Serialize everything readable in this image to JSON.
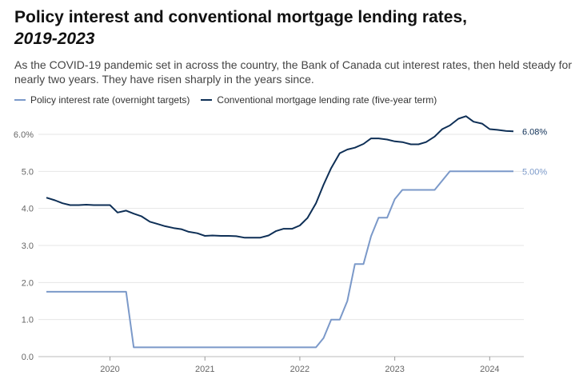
{
  "header": {
    "title_line1": "Policy interest and conventional mortgage lending rates,",
    "title_line2": "2019-2023",
    "subtitle": "As the COVID-19 pandemic set in across the country, the Bank of Canada cut interest rates, then held steady for nearly two years. They have risen sharply in the years since."
  },
  "colors": {
    "policy": "#7b99c9",
    "mortgage": "#0e2f56",
    "grid": "#e6e6e6"
  },
  "chart_data": {
    "type": "line",
    "title": "Policy interest and conventional mortgage lending rates, 2019-2023",
    "subtitle": "As the COVID-19 pandemic set in across the country, the Bank of Canada cut interest rates, then held steady for nearly two years. They have risen sharply in the years since.",
    "xlabel": "",
    "ylabel": "",
    "xlim": [
      2019.25,
      2024.3
    ],
    "ylim": [
      0,
      6.5
    ],
    "y_ticks": [
      "0.0",
      "1.0",
      "2.0",
      "3.0",
      "4.0",
      "5.0",
      "6.0%"
    ],
    "y_tick_values": [
      0,
      1,
      2,
      3,
      4,
      5,
      6
    ],
    "x_ticks": [
      "2020",
      "2021",
      "2022",
      "2023",
      "2024"
    ],
    "x_tick_values": [
      2020,
      2021,
      2022,
      2023,
      2024
    ],
    "grid": true,
    "legend_position": "top-left",
    "series": [
      {
        "name": "Policy interest rate (overnight targets)",
        "color": "#7b99c9",
        "end_label": "5.00%",
        "x": [
          2019.33,
          2020.17,
          2020.25,
          2022.17,
          2022.25,
          2022.33,
          2022.42,
          2022.5,
          2022.58,
          2022.67,
          2022.75,
          2022.83,
          2022.92,
          2023.0,
          2023.08,
          2023.42,
          2023.58,
          2024.25
        ],
        "values": [
          1.75,
          1.75,
          0.25,
          0.25,
          0.5,
          1.0,
          1.0,
          1.5,
          2.5,
          2.5,
          3.25,
          3.75,
          3.75,
          4.25,
          4.5,
          4.5,
          5.0,
          5.0
        ]
      },
      {
        "name": "Conventional mortgage lending rate (five-year term)",
        "color": "#0e2f56",
        "end_label": "6.08%",
        "x": [
          2019.33,
          2019.42,
          2019.5,
          2019.58,
          2019.67,
          2019.75,
          2019.83,
          2019.92,
          2020.0,
          2020.08,
          2020.17,
          2020.25,
          2020.33,
          2020.42,
          2020.5,
          2020.58,
          2020.67,
          2020.75,
          2020.83,
          2020.92,
          2021.0,
          2021.08,
          2021.17,
          2021.25,
          2021.33,
          2021.42,
          2021.5,
          2021.58,
          2021.67,
          2021.75,
          2021.83,
          2021.92,
          2022.0,
          2022.08,
          2022.17,
          2022.25,
          2022.33,
          2022.42,
          2022.5,
          2022.58,
          2022.67,
          2022.75,
          2022.83,
          2022.92,
          2023.0,
          2023.08,
          2023.17,
          2023.25,
          2023.33,
          2023.42,
          2023.5,
          2023.58,
          2023.67,
          2023.75,
          2023.83,
          2023.92,
          2024.0,
          2024.08,
          2024.17,
          2024.25
        ],
        "values": [
          4.29,
          4.22,
          4.14,
          4.09,
          4.09,
          4.1,
          4.09,
          4.09,
          4.09,
          3.89,
          3.94,
          3.86,
          3.79,
          3.64,
          3.58,
          3.52,
          3.47,
          3.44,
          3.37,
          3.33,
          3.26,
          3.27,
          3.26,
          3.26,
          3.25,
          3.21,
          3.21,
          3.21,
          3.27,
          3.39,
          3.45,
          3.45,
          3.54,
          3.74,
          4.14,
          4.64,
          5.09,
          5.49,
          5.59,
          5.64,
          5.74,
          5.89,
          5.89,
          5.86,
          5.81,
          5.79,
          5.73,
          5.73,
          5.79,
          5.94,
          6.14,
          6.24,
          6.42,
          6.49,
          6.34,
          6.29,
          6.14,
          6.12,
          6.09,
          6.08
        ]
      }
    ]
  }
}
